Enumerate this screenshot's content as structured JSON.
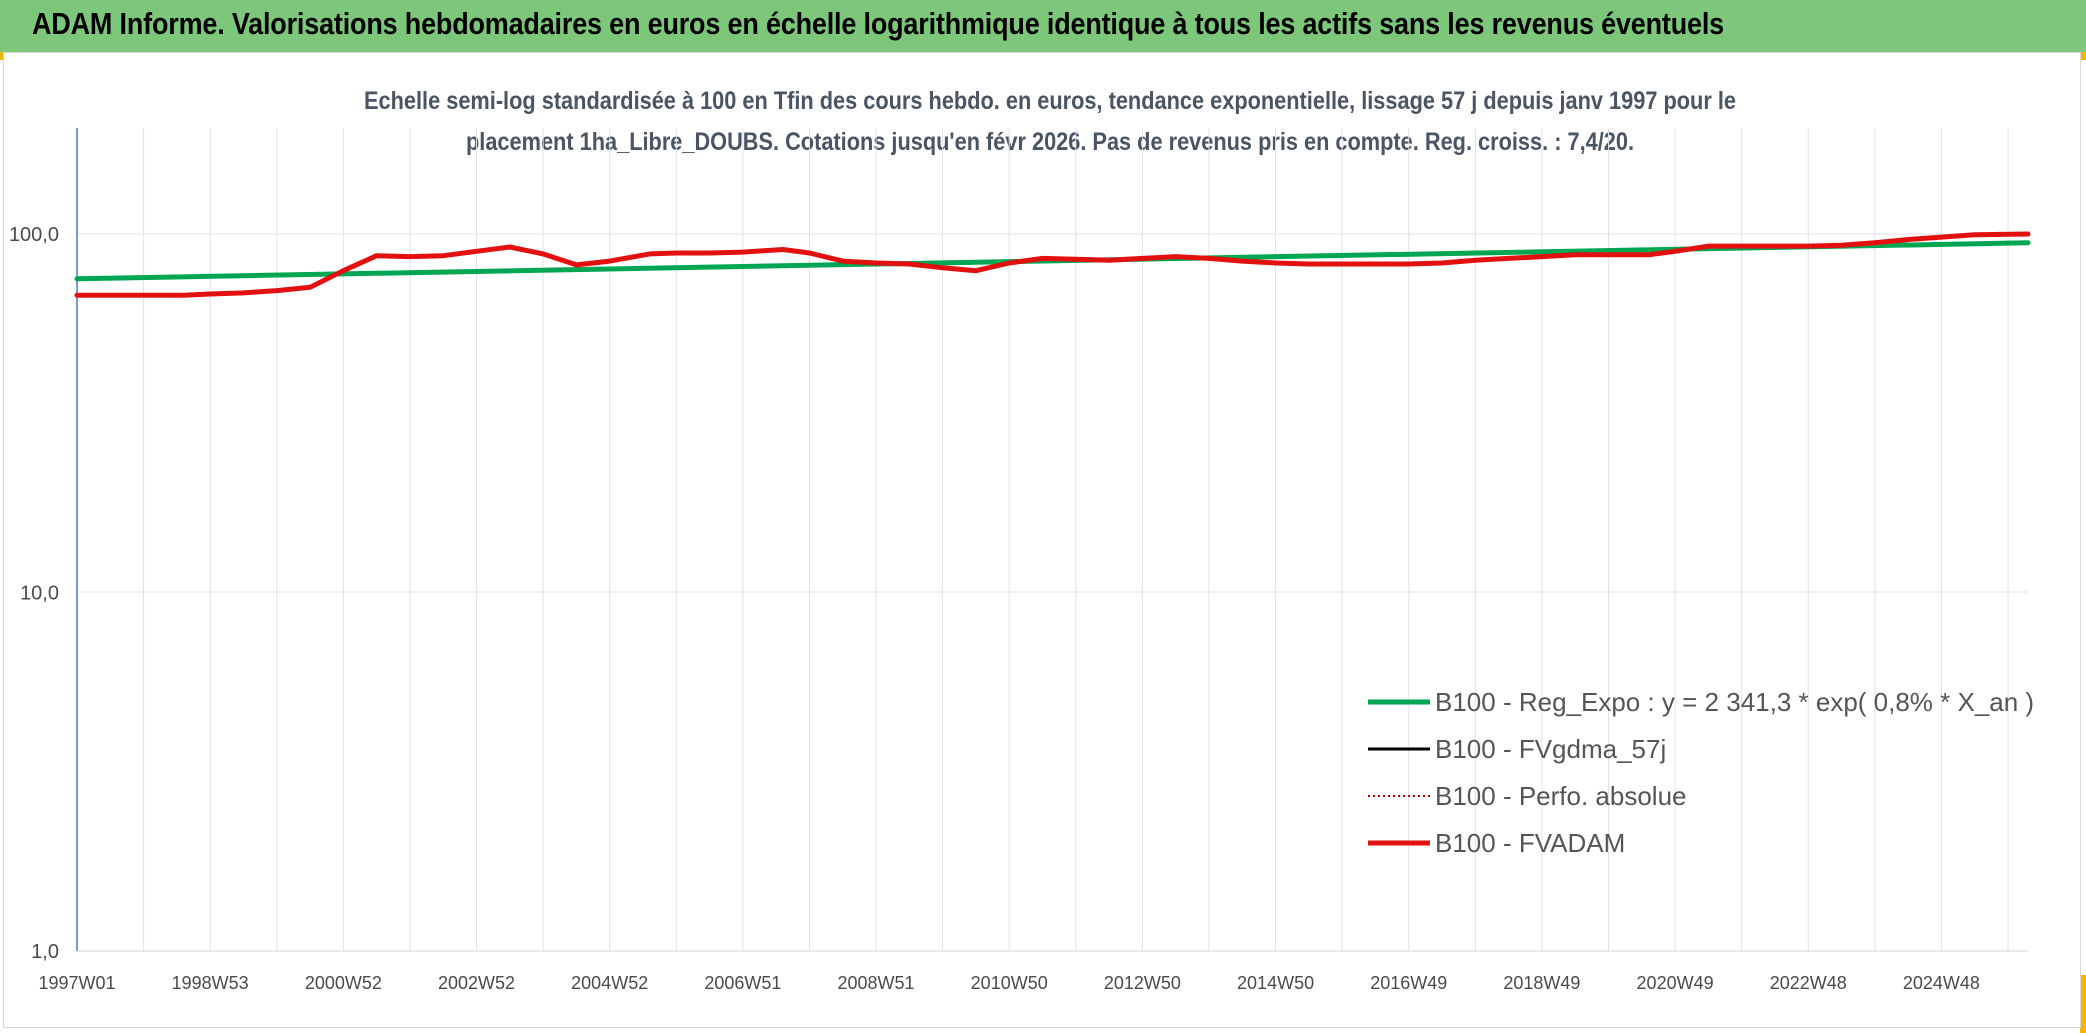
{
  "banner": {
    "title": "ADAM Informe. Valorisations hebdomadaires en euros en échelle logarithmique identique à tous les actifs sans les revenus éventuels"
  },
  "colors": {
    "banner_bg": "#7dc77a",
    "corner_accent": "#f5b400",
    "reg_expo": "#00a651",
    "fvgdma": "#000000",
    "perfo": "#c00000",
    "fvadam": "#e31010"
  },
  "chart_data": {
    "type": "line",
    "title_line1": "Echelle semi-log standardisée à 100 en Tfin des cours hebdo. en euros, tendance exponentielle, lissage 57 j depuis janv 1997 pour le",
    "title_line2": "placement 1ha_Libre_DOUBS. Cotations jusqu'en févr 2026. Pas de revenus pris en compte. Reg. croiss. : 7,4/20.",
    "y_scale": "log",
    "ylim": [
      1,
      200
    ],
    "y_ticks": [
      {
        "value": 1,
        "label": "1,0"
      },
      {
        "value": 10,
        "label": "10,0"
      },
      {
        "value": 100,
        "label": "100,0"
      }
    ],
    "xlim": [
      1997.0,
      2026.3
    ],
    "x_ticks": [
      {
        "x": 1997.0,
        "label": "1997W01"
      },
      {
        "x": 1999.0,
        "label": "1998W53"
      },
      {
        "x": 2001.0,
        "label": "2000W52"
      },
      {
        "x": 2003.0,
        "label": "2002W52"
      },
      {
        "x": 2005.0,
        "label": "2004W52"
      },
      {
        "x": 2007.0,
        "label": "2006W51"
      },
      {
        "x": 2009.0,
        "label": "2008W51"
      },
      {
        "x": 2011.0,
        "label": "2010W50"
      },
      {
        "x": 2013.0,
        "label": "2012W50"
      },
      {
        "x": 2015.0,
        "label": "2014W50"
      },
      {
        "x": 2017.0,
        "label": "2016W49"
      },
      {
        "x": 2019.0,
        "label": "2018W49"
      },
      {
        "x": 2021.0,
        "label": "2020W49"
      },
      {
        "x": 2023.0,
        "label": "2022W48"
      },
      {
        "x": 2025.0,
        "label": "2024W48"
      }
    ],
    "grid": "vertical",
    "legend_position": "lower-right",
    "series": [
      {
        "name": "B100 - Reg_Expo : y = 2 341,3 * exp( 0,8% *  X_an )",
        "color": "#00a651",
        "style": "solid-thick",
        "points": [
          [
            1997.0,
            75.0
          ],
          [
            2026.3,
            94.5
          ]
        ]
      },
      {
        "name": "B100 - FVgdma_57j",
        "color": "#000000",
        "style": "solid-thin",
        "points": []
      },
      {
        "name": "B100 - Perfo. absolue",
        "color": "#c00000",
        "style": "dotted",
        "points": []
      },
      {
        "name": "B100 - FVADAM",
        "color": "#e31010",
        "style": "solid-thick",
        "points": [
          [
            1997.0,
            67.5
          ],
          [
            1998.0,
            67.5
          ],
          [
            1998.6,
            67.5
          ],
          [
            1999.0,
            68.0
          ],
          [
            1999.5,
            68.5
          ],
          [
            2000.0,
            69.5
          ],
          [
            2000.5,
            71.0
          ],
          [
            2001.0,
            79.0
          ],
          [
            2001.5,
            87.0
          ],
          [
            2002.0,
            86.5
          ],
          [
            2002.5,
            87.0
          ],
          [
            2003.0,
            89.5
          ],
          [
            2003.5,
            92.0
          ],
          [
            2004.0,
            88.0
          ],
          [
            2004.5,
            82.0
          ],
          [
            2005.0,
            84.0
          ],
          [
            2005.6,
            88.0
          ],
          [
            2006.0,
            88.5
          ],
          [
            2006.5,
            88.5
          ],
          [
            2007.0,
            89.0
          ],
          [
            2007.6,
            90.5
          ],
          [
            2008.0,
            88.5
          ],
          [
            2008.5,
            84.0
          ],
          [
            2009.0,
            83.0
          ],
          [
            2009.5,
            82.5
          ],
          [
            2010.0,
            80.5
          ],
          [
            2010.5,
            79.0
          ],
          [
            2011.0,
            83.0
          ],
          [
            2011.5,
            85.5
          ],
          [
            2012.0,
            85.0
          ],
          [
            2012.5,
            84.5
          ],
          [
            2013.0,
            85.5
          ],
          [
            2013.5,
            86.5
          ],
          [
            2014.0,
            85.5
          ],
          [
            2014.5,
            84.0
          ],
          [
            2015.0,
            83.0
          ],
          [
            2015.5,
            82.5
          ],
          [
            2016.0,
            82.5
          ],
          [
            2016.5,
            82.5
          ],
          [
            2017.0,
            82.5
          ],
          [
            2017.5,
            83.0
          ],
          [
            2018.0,
            84.5
          ],
          [
            2018.5,
            85.5
          ],
          [
            2019.0,
            86.5
          ],
          [
            2019.5,
            87.5
          ],
          [
            2020.0,
            87.5
          ],
          [
            2020.6,
            87.5
          ],
          [
            2021.0,
            89.5
          ],
          [
            2021.5,
            92.5
          ],
          [
            2022.0,
            92.5
          ],
          [
            2022.5,
            92.5
          ],
          [
            2023.0,
            92.5
          ],
          [
            2023.5,
            93.0
          ],
          [
            2024.0,
            94.5
          ],
          [
            2024.5,
            96.5
          ],
          [
            2025.0,
            98.0
          ],
          [
            2025.5,
            99.5
          ],
          [
            2026.3,
            100.0
          ]
        ]
      }
    ]
  }
}
